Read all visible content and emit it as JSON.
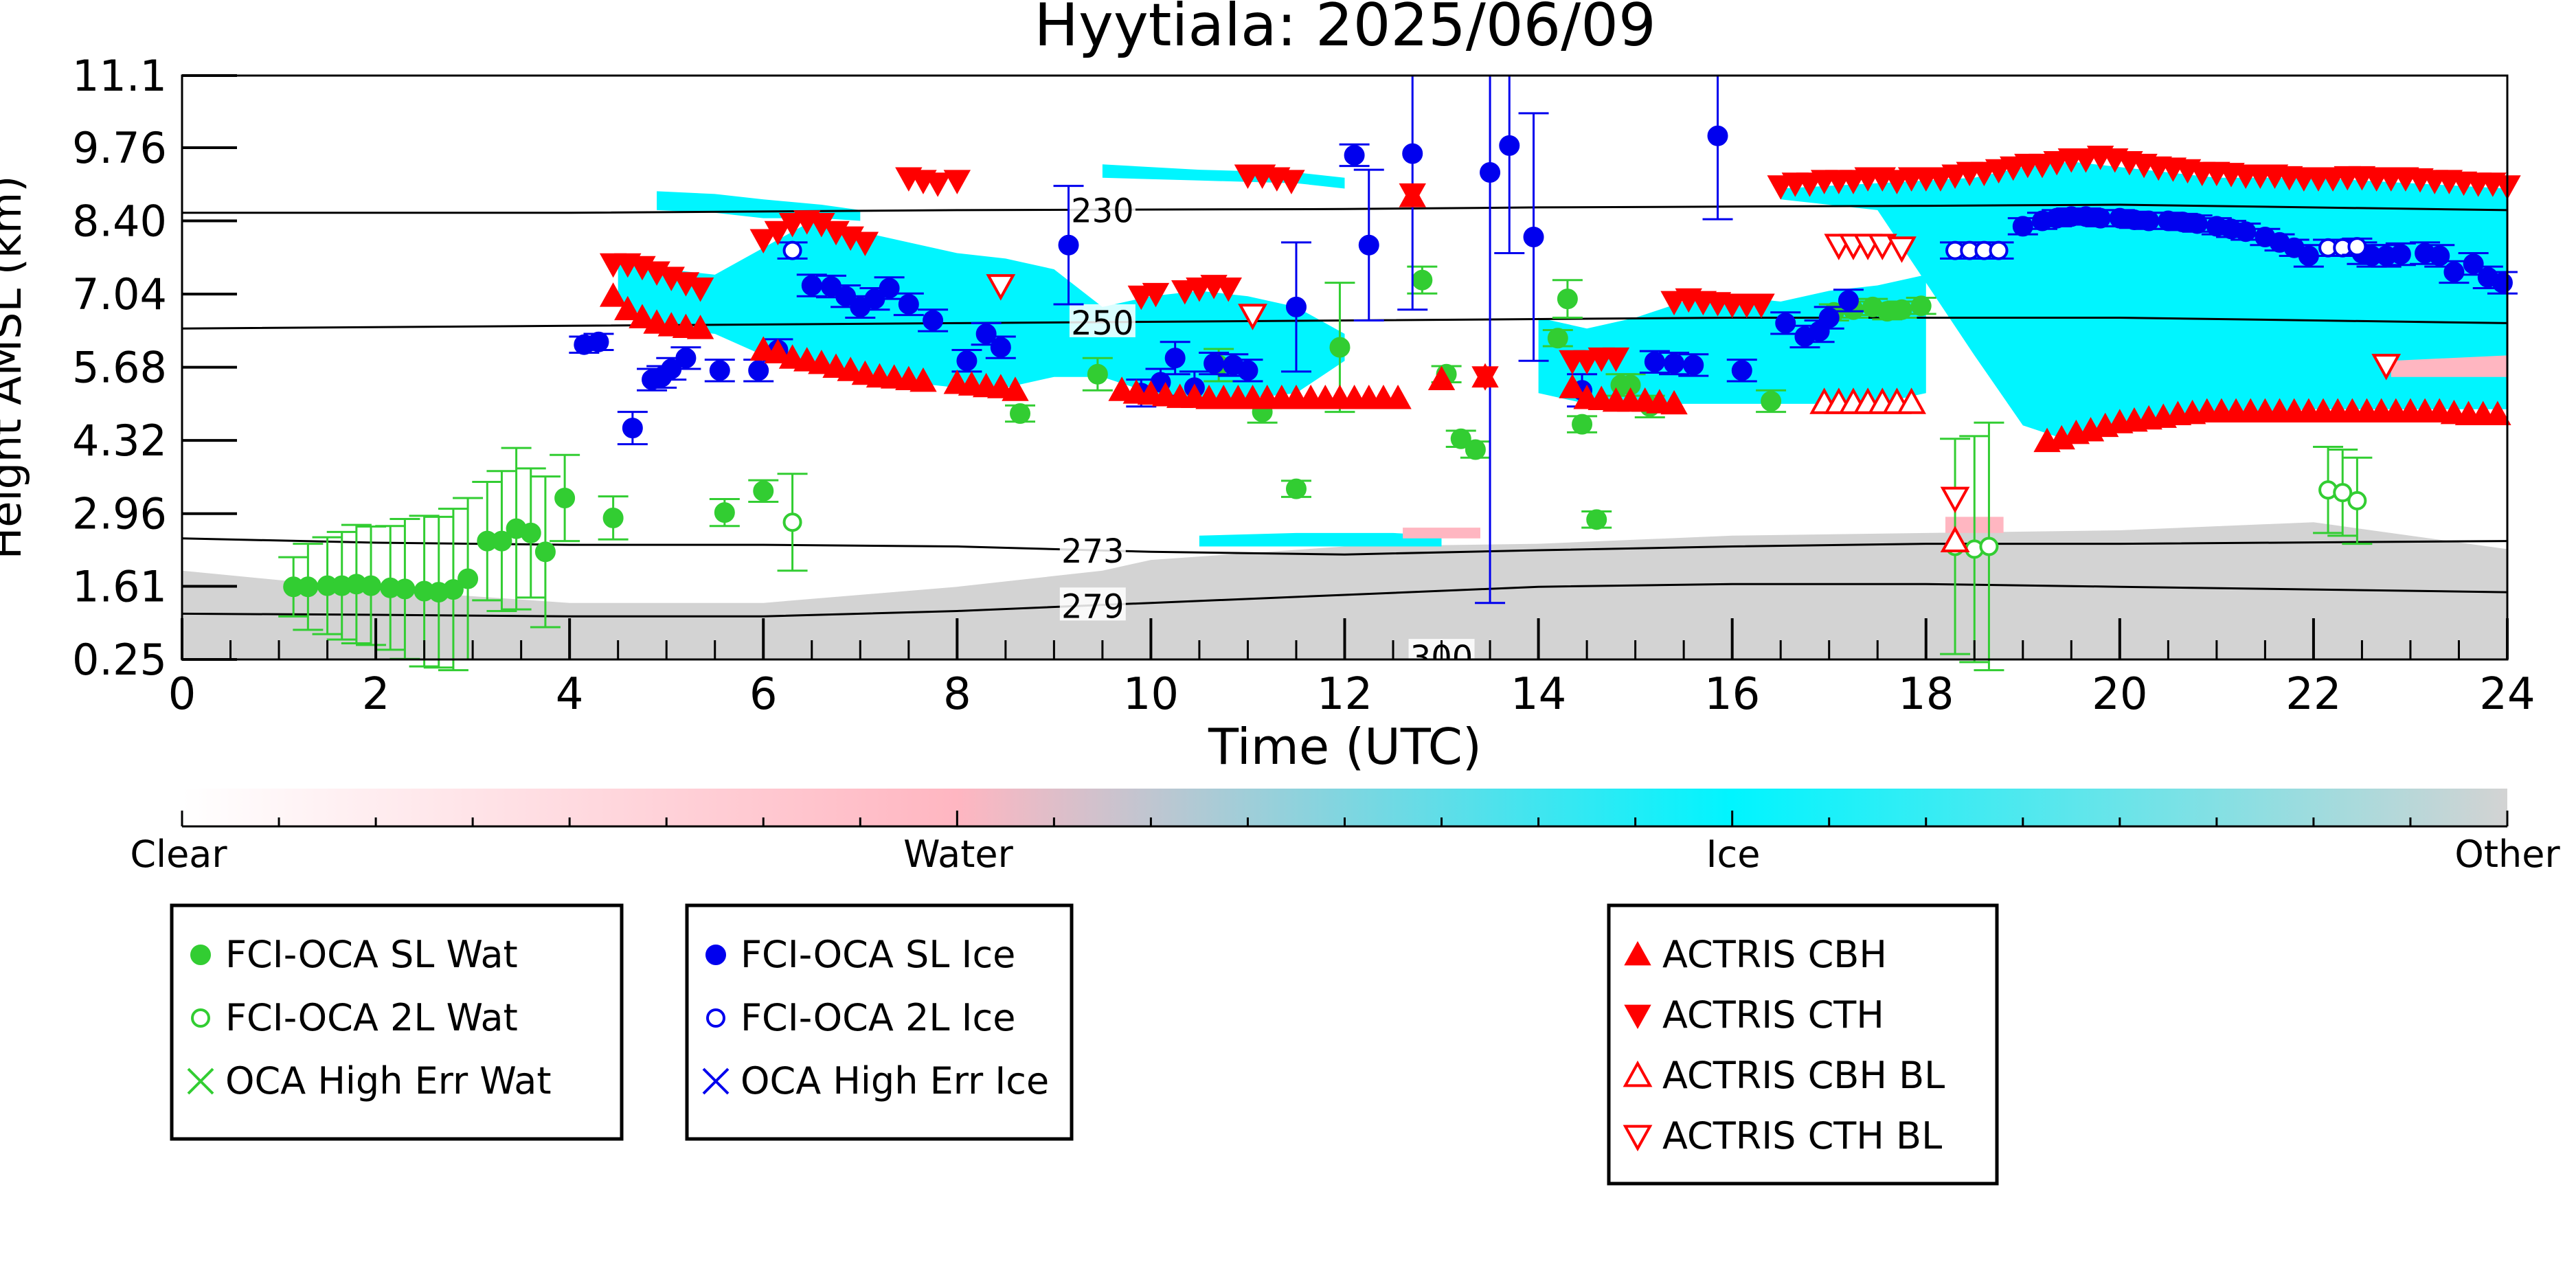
{
  "chart_data": {
    "type": "scatter",
    "title": "Hyytiala: 2025/06/09",
    "xlabel": "Time (UTC)",
    "ylabel": "Height AMSL (km)",
    "xlim": [
      0,
      24
    ],
    "ylim": [
      0.25,
      11.1
    ],
    "x_ticks": [
      0,
      2,
      4,
      6,
      8,
      10,
      12,
      14,
      16,
      18,
      20,
      22,
      24
    ],
    "y_ticks": [
      "0.25",
      "1.61",
      "2.96",
      "4.32",
      "5.68",
      "7.04",
      "8.40",
      "9.76",
      "11.1"
    ],
    "background": "cloud-classification field: Clear (white), Water (pink), Ice (cyan), Other (grey)",
    "colorbar": {
      "labels": [
        "Clear",
        "Water",
        "Ice",
        "Other"
      ],
      "colors": {
        "clear": "#ffffff",
        "water": "#ffb6c1",
        "ice": "#00f5ff",
        "other": "#d3d3d3"
      }
    },
    "contours": [
      {
        "label": "230",
        "x": [
          0,
          4,
          8,
          12,
          14,
          18,
          20,
          24
        ],
        "y": [
          8.55,
          8.55,
          8.6,
          8.62,
          8.65,
          8.68,
          8.7,
          8.6
        ]
      },
      {
        "label": "250",
        "x": [
          0,
          4,
          8,
          12,
          16,
          18,
          20,
          24
        ],
        "y": [
          6.4,
          6.45,
          6.5,
          6.55,
          6.6,
          6.6,
          6.6,
          6.5
        ]
      },
      {
        "label": "273",
        "x": [
          0,
          2,
          4,
          6,
          8,
          10,
          12,
          14,
          16,
          18,
          20,
          24
        ],
        "y": [
          2.5,
          2.42,
          2.38,
          2.38,
          2.35,
          2.25,
          2.2,
          2.28,
          2.35,
          2.4,
          2.4,
          2.45
        ]
      },
      {
        "label": "279",
        "x": [
          0,
          2,
          4,
          6,
          8,
          10,
          12,
          14,
          16,
          18,
          20,
          24
        ],
        "y": [
          1.1,
          1.08,
          1.05,
          1.05,
          1.15,
          1.3,
          1.45,
          1.6,
          1.65,
          1.65,
          1.6,
          1.5
        ]
      },
      {
        "label": "300",
        "x": [
          13.0
        ],
        "y": [
          0.3
        ]
      }
    ],
    "series": [
      {
        "name": "FCI-OCA SL Wat",
        "x": [
          1.15,
          1.3,
          1.5,
          1.65,
          1.8,
          1.95,
          2.15,
          2.3,
          2.5,
          2.65,
          2.8,
          2.95,
          3.15,
          3.3,
          3.45,
          3.6,
          3.75,
          3.95,
          4.45,
          5.6,
          6.0,
          8.65,
          9.45,
          10.7,
          11.15,
          11.5,
          11.95,
          12.8,
          13.05,
          13.2,
          13.35,
          14.2,
          14.3,
          14.45,
          14.6,
          14.85,
          14.95,
          15.15,
          16.4,
          17.05,
          17.25,
          17.45,
          17.6,
          17.75,
          17.95
        ],
        "y": [
          1.6,
          1.6,
          1.62,
          1.62,
          1.65,
          1.62,
          1.58,
          1.56,
          1.52,
          1.5,
          1.55,
          1.75,
          2.45,
          2.45,
          2.68,
          2.6,
          2.25,
          3.25,
          2.88,
          2.98,
          3.38,
          4.82,
          5.55,
          5.72,
          4.85,
          3.42,
          6.05,
          7.3,
          5.55,
          4.35,
          4.15,
          6.22,
          6.95,
          4.62,
          2.85,
          5.35,
          5.35,
          4.95,
          5.05,
          6.7,
          6.75,
          6.8,
          6.72,
          6.75,
          6.82
        ],
        "err": [
          0.55,
          0.8,
          0.9,
          1.0,
          1.1,
          1.1,
          1.15,
          1.3,
          1.4,
          1.4,
          1.5,
          1.5,
          1.1,
          1.3,
          1.5,
          1.2,
          1.4,
          0.8,
          0.4,
          0.25,
          0.2,
          0.15,
          0.3,
          0.3,
          0.2,
          0.15,
          1.2,
          0.25,
          0.15,
          0.15,
          0.15,
          0.15,
          0.35,
          0.15,
          0.15,
          0.2,
          0.2,
          0.2,
          0.2,
          0.15,
          0.15,
          0.15,
          0.15,
          0.15,
          0.15
        ],
        "color": "#32cd32",
        "marker": "filled-circle"
      },
      {
        "name": "FCI-OCA 2L Wat",
        "x": [
          6.3,
          18.3,
          18.5,
          18.65,
          22.15,
          22.3,
          22.45
        ],
        "y": [
          2.8,
          2.35,
          2.3,
          2.35,
          3.4,
          3.35,
          3.2
        ],
        "err": [
          0.9,
          2.0,
          2.1,
          2.3,
          0.8,
          0.8,
          0.8
        ],
        "color": "#32cd32",
        "marker": "open-circle"
      },
      {
        "name": "OCA High Err Wat",
        "x": [],
        "y": [],
        "color": "#32cd32",
        "marker": "x"
      },
      {
        "name": "FCI-OCA SL Ice",
        "x": [
          4.3,
          4.15,
          4.65,
          4.85,
          4.95,
          5.05,
          5.2,
          5.55,
          5.95,
          6.15,
          6.5,
          6.7,
          6.85,
          7.0,
          7.15,
          7.3,
          7.5,
          7.75,
          8.1,
          8.3,
          8.45,
          9.15,
          9.9,
          10.1,
          10.25,
          10.45,
          10.65,
          10.85,
          11.0,
          11.5,
          12.1,
          12.25,
          12.7,
          13.5,
          13.7,
          13.95,
          14.45,
          15.2,
          15.4,
          15.6,
          15.85,
          16.1,
          16.55,
          16.75,
          16.9,
          17.0,
          17.2,
          19.0,
          19.2,
          19.35,
          19.5,
          19.65,
          19.8,
          20.0,
          20.15,
          20.3,
          20.5,
          20.65,
          20.8,
          21.0,
          21.15,
          21.3,
          21.5,
          21.65,
          21.8,
          21.95,
          22.5,
          22.6,
          22.75,
          22.9,
          23.15,
          23.3,
          23.45,
          23.65,
          23.8,
          23.95
        ],
        "y": [
          6.15,
          6.1,
          4.55,
          5.45,
          5.5,
          5.65,
          5.85,
          5.62,
          5.62,
          6.0,
          7.2,
          7.18,
          7.0,
          6.8,
          6.95,
          7.15,
          6.85,
          6.55,
          5.8,
          6.3,
          6.05,
          7.95,
          5.2,
          5.4,
          5.85,
          5.3,
          5.75,
          5.72,
          5.62,
          6.8,
          9.62,
          7.95,
          9.65,
          9.3,
          9.8,
          8.1,
          5.25,
          5.78,
          5.75,
          5.72,
          9.98,
          5.62,
          6.5,
          6.25,
          6.35,
          6.6,
          6.92,
          8.3,
          8.4,
          8.45,
          8.48,
          8.48,
          8.45,
          8.45,
          8.42,
          8.4,
          8.4,
          8.38,
          8.35,
          8.3,
          8.25,
          8.2,
          8.1,
          8.0,
          7.9,
          7.75,
          7.8,
          7.75,
          7.75,
          7.78,
          7.8,
          7.75,
          7.45,
          7.6,
          7.35,
          7.25
        ],
        "err": [
          0.15,
          0.15,
          0.3,
          0.2,
          0.2,
          0.2,
          0.2,
          0.2,
          0.2,
          0.2,
          0.2,
          0.2,
          0.2,
          0.2,
          0.2,
          0.2,
          0.2,
          0.2,
          0.2,
          0.2,
          0.2,
          1.1,
          0.25,
          0.25,
          0.3,
          0.3,
          0.2,
          0.2,
          0.2,
          1.2,
          0.2,
          1.4,
          2.9,
          8.0,
          2.0,
          2.3,
          0.3,
          0.2,
          0.2,
          0.2,
          1.55,
          0.2,
          0.2,
          0.2,
          0.2,
          0.2,
          0.2,
          0.15,
          0.15,
          0.15,
          0.15,
          0.15,
          0.15,
          0.15,
          0.15,
          0.15,
          0.15,
          0.15,
          0.15,
          0.15,
          0.15,
          0.15,
          0.15,
          0.15,
          0.15,
          0.2,
          0.2,
          0.2,
          0.2,
          0.2,
          0.2,
          0.2,
          0.2,
          0.2,
          0.2,
          0.2
        ],
        "color": "#0000ee",
        "marker": "filled-circle"
      },
      {
        "name": "FCI-OCA 2L Ice",
        "x": [
          6.3,
          18.3,
          18.45,
          18.6,
          18.75,
          22.15,
          22.3,
          22.45
        ],
        "y": [
          7.85,
          7.85,
          7.85,
          7.85,
          7.85,
          7.9,
          7.9,
          7.92
        ],
        "err": [
          0.15,
          0.15,
          0.15,
          0.15,
          0.15,
          0.15,
          0.15,
          0.15
        ],
        "color": "#0000ee",
        "marker": "open-circle"
      },
      {
        "name": "OCA High Err Ice",
        "x": [],
        "y": [],
        "color": "#0000ee",
        "marker": "x"
      },
      {
        "name": "ACTRIS CBH",
        "x": [
          4.45,
          4.6,
          4.75,
          4.9,
          5.05,
          5.2,
          5.35,
          6.0,
          6.15,
          6.3,
          6.45,
          6.6,
          6.75,
          6.9,
          7.05,
          7.2,
          7.35,
          7.5,
          7.65,
          8.0,
          8.15,
          8.3,
          8.45,
          8.6,
          9.7,
          9.85,
          10.0,
          10.15,
          10.3,
          10.45,
          10.6,
          10.75,
          10.9,
          11.05,
          11.2,
          11.35,
          11.5,
          11.65,
          11.8,
          11.95,
          12.1,
          12.25,
          12.4,
          12.55,
          12.7,
          13.0,
          13.45,
          14.35,
          14.5,
          14.65,
          14.8,
          14.95,
          15.1,
          15.25,
          15.4,
          19.25,
          19.4,
          19.55,
          19.7,
          19.85,
          20.0,
          20.15,
          20.3,
          20.45,
          20.6,
          20.75,
          20.9,
          21.05,
          21.2,
          21.35,
          21.5,
          21.65,
          21.8,
          21.95,
          22.1,
          22.25,
          22.4,
          22.55,
          22.7,
          22.85,
          23.0,
          23.15,
          23.3,
          23.45,
          23.6,
          23.75,
          23.9
        ],
        "y": [
          7.0,
          6.75,
          6.6,
          6.5,
          6.45,
          6.42,
          6.4,
          6.0,
          5.95,
          5.85,
          5.8,
          5.75,
          5.68,
          5.62,
          5.55,
          5.5,
          5.48,
          5.45,
          5.42,
          5.38,
          5.35,
          5.32,
          5.3,
          5.25,
          5.25,
          5.2,
          5.18,
          5.15,
          5.12,
          5.12,
          5.1,
          5.1,
          5.1,
          5.1,
          5.1,
          5.1,
          5.1,
          5.1,
          5.1,
          5.1,
          5.1,
          5.1,
          5.1,
          5.1,
          8.85,
          5.45,
          5.5,
          5.3,
          5.1,
          5.08,
          5.05,
          5.05,
          5.05,
          5.02,
          5.0,
          4.3,
          4.35,
          4.45,
          4.5,
          4.58,
          4.65,
          4.68,
          4.72,
          4.75,
          4.8,
          4.82,
          4.85,
          4.85,
          4.85,
          4.85,
          4.85,
          4.85,
          4.85,
          4.85,
          4.85,
          4.85,
          4.85,
          4.85,
          4.85,
          4.85,
          4.85,
          4.85,
          4.85,
          4.82,
          4.8,
          4.8,
          4.8
        ],
        "color": "#ff0000",
        "marker": "filled-triangle-up"
      },
      {
        "name": "ACTRIS CTH",
        "x": [
          4.45,
          4.6,
          4.75,
          4.9,
          5.05,
          5.2,
          5.35,
          6.0,
          6.15,
          6.3,
          6.45,
          6.6,
          6.75,
          6.9,
          7.05,
          7.5,
          7.65,
          7.8,
          8.0,
          9.9,
          10.05,
          10.35,
          10.5,
          10.65,
          10.8,
          11.0,
          11.15,
          11.3,
          11.45,
          12.7,
          13.45,
          14.35,
          14.5,
          14.65,
          14.8,
          15.4,
          15.55,
          15.7,
          15.85,
          16.0,
          16.15,
          16.3,
          16.5,
          16.65,
          16.8,
          16.95,
          17.1,
          17.25,
          17.4,
          17.55,
          17.7,
          17.85,
          18.0,
          18.15,
          18.3,
          18.45,
          18.6,
          18.75,
          18.9,
          19.05,
          19.2,
          19.35,
          19.5,
          19.65,
          19.8,
          19.95,
          20.1,
          20.25,
          20.4,
          20.55,
          20.7,
          20.85,
          21.0,
          21.15,
          21.3,
          21.45,
          21.6,
          21.75,
          21.9,
          22.05,
          22.2,
          22.35,
          22.5,
          22.65,
          22.8,
          22.95,
          23.1,
          23.25,
          23.4,
          23.55,
          23.7,
          23.85,
          24.0
        ],
        "y": [
          7.6,
          7.6,
          7.55,
          7.45,
          7.35,
          7.25,
          7.15,
          8.05,
          8.2,
          8.35,
          8.4,
          8.35,
          8.2,
          8.1,
          8.0,
          9.2,
          9.15,
          9.1,
          9.15,
          7.0,
          7.05,
          7.1,
          7.15,
          7.2,
          7.15,
          9.25,
          9.25,
          9.2,
          9.15,
          8.9,
          5.5,
          5.8,
          5.8,
          5.85,
          5.85,
          6.9,
          6.95,
          6.9,
          6.88,
          6.85,
          6.85,
          6.85,
          9.05,
          9.1,
          9.1,
          9.15,
          9.15,
          9.15,
          9.2,
          9.2,
          9.15,
          9.2,
          9.2,
          9.2,
          9.25,
          9.3,
          9.3,
          9.35,
          9.4,
          9.45,
          9.45,
          9.5,
          9.55,
          9.55,
          9.6,
          9.55,
          9.5,
          9.45,
          9.4,
          9.38,
          9.35,
          9.3,
          9.3,
          9.28,
          9.25,
          9.25,
          9.25,
          9.22,
          9.2,
          9.2,
          9.2,
          9.22,
          9.22,
          9.2,
          9.2,
          9.2,
          9.18,
          9.15,
          9.15,
          9.12,
          9.1,
          9.1,
          9.05
        ],
        "color": "#ff0000",
        "marker": "filled-triangle-down"
      },
      {
        "name": "ACTRIS CBH BL",
        "x": [
          16.95,
          17.1,
          17.25,
          17.4,
          17.55,
          17.7,
          17.85,
          18.3
        ],
        "y": [
          5.02,
          5.02,
          5.02,
          5.02,
          5.02,
          5.02,
          5.02,
          2.45
        ],
        "color": "#ff0000",
        "marker": "open-triangle-up"
      },
      {
        "name": "ACTRIS CTH BL",
        "x": [
          8.45,
          11.05,
          17.1,
          17.25,
          17.4,
          17.55,
          17.75,
          18.3,
          22.75
        ],
        "y": [
          7.2,
          6.65,
          7.95,
          7.95,
          7.95,
          7.95,
          7.9,
          3.25,
          5.72
        ],
        "color": "#ff0000",
        "marker": "open-triangle-down"
      }
    ]
  }
}
